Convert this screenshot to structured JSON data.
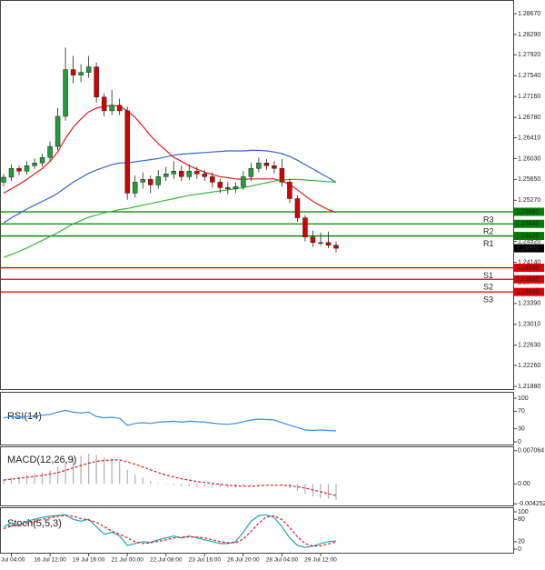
{
  "chart_data": [
    {
      "type": "candlestick",
      "categories": [
        null,
        "Jul 04:00",
        null,
        null,
        null,
        null,
        "16 Jul 12:00",
        null,
        null,
        null,
        null,
        "19 Jul 16:00",
        null,
        null,
        null,
        null,
        "21 Jul 00:00",
        null,
        null,
        null,
        null,
        "22 Jul 08:00",
        null,
        null,
        null,
        null,
        "23 Jul 16:00",
        null,
        null,
        null,
        null,
        "26 Jul 20:00",
        null,
        null,
        null,
        null,
        "28 Jul 04:00",
        null,
        null,
        null,
        null,
        "29 Jul 12:00",
        null,
        null
      ],
      "open": [
        1.256,
        1.2569,
        1.2585,
        1.258,
        1.259,
        1.2595,
        1.2605,
        1.2625,
        1.268,
        1.2765,
        1.2755,
        1.276,
        1.277,
        1.2715,
        1.269,
        1.27,
        1.269,
        1.254,
        1.256,
        1.2565,
        1.2555,
        1.257,
        1.2575,
        1.258,
        1.257,
        1.258,
        1.2575,
        1.257,
        1.256,
        1.255,
        1.2548,
        1.2552,
        1.257,
        1.2585,
        1.2595,
        1.259,
        1.2585,
        1.256,
        1.253,
        1.2495,
        1.246,
        1.245,
        1.245,
        1.2445
      ],
      "high": [
        1.2575,
        1.2592,
        1.259,
        1.2598,
        1.2603,
        1.2612,
        1.2634,
        1.2695,
        1.2805,
        1.279,
        1.2775,
        1.279,
        1.2778,
        1.2722,
        1.2728,
        1.2712,
        1.2698,
        1.2572,
        1.2578,
        1.2572,
        1.2582,
        1.2588,
        1.2598,
        1.259,
        1.2592,
        1.2588,
        1.2582,
        1.2578,
        1.2566,
        1.256,
        1.256,
        1.258,
        1.2595,
        1.2605,
        1.2602,
        1.2598,
        1.2602,
        1.2566,
        1.2536,
        1.25,
        1.2472,
        1.2468,
        1.247,
        1.2452
      ],
      "low": [
        1.2552,
        1.2562,
        1.2572,
        1.2574,
        1.2584,
        1.2588,
        1.2598,
        1.2618,
        1.2672,
        1.274,
        1.2742,
        1.275,
        1.2705,
        1.268,
        1.2682,
        1.2682,
        1.2528,
        1.2532,
        1.2548,
        1.254,
        1.2548,
        1.2562,
        1.2566,
        1.2562,
        1.2564,
        1.2566,
        1.2562,
        1.255,
        1.254,
        1.2538,
        1.254,
        1.2546,
        1.2562,
        1.2578,
        1.2582,
        1.2576,
        1.2552,
        1.2522,
        1.2488,
        1.2452,
        1.2442,
        1.2444,
        1.244,
        1.2432
      ],
      "close": [
        1.2569,
        1.2585,
        1.258,
        1.259,
        1.2595,
        1.2605,
        1.2625,
        1.268,
        1.2765,
        1.2755,
        1.276,
        1.277,
        1.2715,
        1.269,
        1.27,
        1.269,
        1.254,
        1.256,
        1.2565,
        1.2555,
        1.257,
        1.2575,
        1.258,
        1.257,
        1.258,
        1.2575,
        1.257,
        1.256,
        1.255,
        1.2548,
        1.2552,
        1.257,
        1.2585,
        1.2595,
        1.259,
        1.2585,
        1.256,
        1.253,
        1.2495,
        1.246,
        1.245,
        1.245,
        1.2445,
        1.24396
      ],
      "up_color": "#1f9e3a",
      "down_color": "#d40000",
      "series": [
        {
          "color": "#e31a1c",
          "values": [
            1.254,
            1.2548,
            1.2556,
            1.2565,
            1.2575,
            1.2585,
            1.2598,
            1.2615,
            1.264,
            1.266,
            1.2675,
            1.2688,
            1.2695,
            1.2698,
            1.27,
            1.2698,
            1.269,
            1.2678,
            1.2662,
            1.2645,
            1.263,
            1.2618,
            1.2605,
            1.2598,
            1.259,
            1.2584,
            1.2578,
            1.2574,
            1.257,
            1.2568,
            1.2566,
            1.2565,
            1.2566,
            1.2566,
            1.2566,
            1.2566,
            1.2562,
            1.2556,
            1.2546,
            1.2535,
            1.2525,
            1.2517,
            1.251,
            1.2505
          ]
        },
        {
          "color": "#3a62d6",
          "values": [
            1.2486,
            1.2495,
            1.2503,
            1.2511,
            1.2518,
            1.2525,
            1.2532,
            1.254,
            1.255,
            1.256,
            1.2568,
            1.2576,
            1.2582,
            1.2587,
            1.2592,
            1.2595,
            1.2595,
            1.2597,
            1.2599,
            1.2601,
            1.2603,
            1.2606,
            1.2609,
            1.2611,
            1.2612,
            1.2613,
            1.2614,
            1.2615,
            1.2616,
            1.2617,
            1.2617,
            1.2617,
            1.2618,
            1.2618,
            1.2617,
            1.2615,
            1.2612,
            1.2607,
            1.26,
            1.2592,
            1.2584,
            1.2576,
            1.2568,
            1.256
          ]
        },
        {
          "color": "#3cb43c",
          "values": [
            1.2423,
            1.2428,
            1.2434,
            1.244,
            1.2447,
            1.2454,
            1.2461,
            1.2468,
            1.2476,
            1.2484,
            1.249,
            1.2496,
            1.25,
            1.2504,
            1.2507,
            1.251,
            1.2512,
            1.2515,
            1.2518,
            1.2521,
            1.2524,
            1.2527,
            1.253,
            1.2533,
            1.2536,
            1.2538,
            1.254,
            1.2542,
            1.2544,
            1.2546,
            1.2548,
            1.255,
            1.2553,
            1.2556,
            1.2559,
            1.2562,
            1.2564,
            1.2565,
            1.2565,
            1.2564,
            1.2563,
            1.2562,
            1.2561,
            1.256
          ]
        }
      ],
      "levels": [
        {
          "name": "R3",
          "value": 1.2506,
          "label": "1.25060",
          "color": "#008000"
        },
        {
          "name": "R2",
          "value": 1.2484,
          "label": "1.24840",
          "color": "#008000"
        },
        {
          "name": "R1",
          "value": 1.2462,
          "label": "1.24620",
          "color": "#008000"
        },
        {
          "name": "S1",
          "value": 1.2404,
          "label": "1.24040",
          "color": "#e00000"
        },
        {
          "name": "S2",
          "value": 1.2383,
          "label": "1.23830",
          "color": "#e00000"
        },
        {
          "name": "S3",
          "value": 1.236,
          "label": "1.23600",
          "color": "#e00000"
        }
      ],
      "last_price": {
        "value": 1.24396,
        "label": "1.24396"
      },
      "ylim": [
        1.2188,
        1.2867
      ],
      "yticks": [
        {
          "value": 1.2867,
          "label": "1.28670"
        },
        {
          "value": 1.2829,
          "label": "1.28290"
        },
        {
          "value": 1.2792,
          "label": "1.27920"
        },
        {
          "value": 1.2754,
          "label": "1.27540"
        },
        {
          "value": 1.2716,
          "label": "1.27160"
        },
        {
          "value": 1.2678,
          "label": "1.26780"
        },
        {
          "value": 1.2641,
          "label": "1.26410"
        },
        {
          "value": 1.2603,
          "label": "1.26030"
        },
        {
          "value": 1.2565,
          "label": "1.25650"
        },
        {
          "value": 1.2527,
          "label": "1.25270"
        },
        {
          "value": 1.2452,
          "label": "1.24520"
        },
        {
          "value": 1.2414,
          "label": "1.24140"
        },
        {
          "value": 1.2377,
          "label": "1.23770"
        },
        {
          "value": 1.2339,
          "label": "1.23390"
        },
        {
          "value": 1.2301,
          "label": "1.23010"
        },
        {
          "value": 1.2263,
          "label": "1.22630"
        },
        {
          "value": 1.2226,
          "label": "1.22260"
        },
        {
          "value": 1.2188,
          "label": "1.21880"
        }
      ]
    },
    {
      "type": "line",
      "title": "RSI(14)",
      "ylim": [
        0,
        100
      ],
      "yticks": [
        100,
        70,
        30,
        0
      ],
      "series": [
        {
          "color": "#3a8ee6",
          "values": [
            55,
            58,
            56,
            58,
            59,
            61,
            63,
            68,
            72,
            68,
            66,
            68,
            58,
            55,
            56,
            54,
            38,
            42,
            44,
            42,
            45,
            46,
            47,
            45,
            47,
            46,
            45,
            43,
            41,
            40,
            42,
            46,
            50,
            52,
            51,
            50,
            44,
            38,
            33,
            27,
            26,
            27,
            26,
            25
          ]
        }
      ]
    },
    {
      "type": "macd",
      "title": "MACD(12,26,9)",
      "ylim": [
        -0.0046,
        0.0078
      ],
      "yticks": [
        0.007064,
        {
          "value": 0,
          "label": "0.00"
        },
        -0.004252
      ],
      "histogram": {
        "color": "#b0b0b0",
        "values": [
          0.001,
          0.0014,
          0.0016,
          0.0019,
          0.0022,
          0.0025,
          0.0029,
          0.0036,
          0.0048,
          0.0055,
          0.006,
          0.0064,
          0.0062,
          0.0057,
          0.0053,
          0.0048,
          0.003,
          0.002,
          0.0013,
          0.0006,
          0.0002,
          -0.0001,
          -0.0003,
          -0.0005,
          -0.0005,
          -0.0006,
          -0.0006,
          -0.0007,
          -0.0008,
          -0.0008,
          -0.0008,
          -0.0006,
          -0.0003,
          -0.0001,
          0.0,
          0.0,
          -0.0004,
          -0.0009,
          -0.0015,
          -0.0022,
          -0.0027,
          -0.003,
          -0.0032,
          -0.0034
        ]
      },
      "series": [
        {
          "color": "#e31a1c",
          "dashed": true,
          "values": [
            0.0008,
            0.001,
            0.0012,
            0.0014,
            0.0016,
            0.0018,
            0.0021,
            0.0024,
            0.0029,
            0.0034,
            0.0039,
            0.0044,
            0.0048,
            0.005,
            0.0051,
            0.0051,
            0.0047,
            0.0042,
            0.0036,
            0.003,
            0.0024,
            0.0019,
            0.0015,
            0.0011,
            0.0008,
            0.0005,
            0.0003,
            0.0001,
            -0.0001,
            -0.0003,
            -0.0004,
            -0.0005,
            -0.0005,
            -0.0004,
            -0.0003,
            -0.0003,
            -0.0003,
            -0.0004,
            -0.0006,
            -0.0009,
            -0.0013,
            -0.0017,
            -0.0021,
            -0.0025
          ]
        }
      ]
    },
    {
      "type": "line",
      "title": "Stoch(5,5,3)",
      "ylim": [
        0,
        100
      ],
      "yticks": [
        100,
        80,
        20,
        0
      ],
      "series": [
        {
          "color": "#1aa6b7",
          "values": [
            60,
            70,
            65,
            75,
            80,
            85,
            88,
            90,
            92,
            80,
            75,
            80,
            60,
            40,
            45,
            35,
            10,
            15,
            20,
            18,
            25,
            30,
            35,
            30,
            35,
            30,
            25,
            20,
            15,
            15,
            20,
            45,
            75,
            90,
            92,
            85,
            60,
            30,
            10,
            5,
            8,
            15,
            20,
            22
          ]
        },
        {
          "color": "#e31a1c",
          "dashed": true,
          "values": [
            55,
            62,
            65,
            70,
            73,
            80,
            84,
            88,
            90,
            88,
            82,
            78,
            72,
            60,
            48,
            40,
            30,
            20,
            15,
            17,
            21,
            25,
            30,
            32,
            33,
            32,
            30,
            25,
            20,
            17,
            17,
            27,
            47,
            70,
            86,
            89,
            79,
            58,
            33,
            15,
            8,
            9,
            14,
            19
          ]
        }
      ]
    }
  ]
}
